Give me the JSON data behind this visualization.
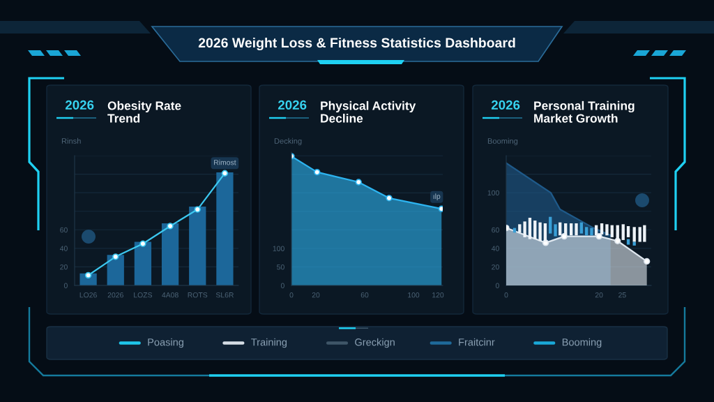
{
  "chart_data": [
    {
      "type": "other",
      "title": "2026 Weight Loss & Fitness Statistics Dashboard"
    },
    {
      "type": "bar",
      "subtitle": "2026",
      "title": "Obesity Rate\nTrend",
      "ylabel": "Rinsh",
      "categories": [
        "LO26",
        "2026",
        "LOZS",
        "4A08",
        "ROTS",
        "SL6R"
      ],
      "series": [
        {
          "type": "bar",
          "color": "#1c679a",
          "values": [
            13,
            33,
            47,
            67,
            85,
            122
          ]
        },
        {
          "type": "line",
          "color": "#3cc8f0",
          "marker": "circle",
          "values": [
            11,
            31,
            45,
            64,
            82,
            121
          ]
        }
      ],
      "ylim": [
        0,
        140
      ],
      "yticks": [
        0,
        20,
        40,
        60,
        {
          "value": 80,
          "label": null
        },
        {
          "value": 100,
          "label": null
        },
        {
          "value": 120,
          "label": null
        },
        {
          "value": 140,
          "label": null
        }
      ],
      "grid": "y",
      "annotations": [
        {
          "text": "Rimost",
          "x": "SL6R",
          "y": 132
        }
      ]
    },
    {
      "type": "area",
      "subtitle": "2026",
      "title": "Physical Activity\nDecline",
      "ylabel": "Decking",
      "x": [
        0,
        21,
        55,
        80,
        123
      ],
      "series": [
        {
          "color": "#2db4f0",
          "marker": "circle",
          "values": [
            349,
            306,
            279,
            236,
            207
          ]
        }
      ],
      "xlim": [
        0,
        124
      ],
      "xticks": [
        0,
        20,
        60,
        100,
        120
      ],
      "ylim": [
        0,
        360
      ],
      "yticks": [
        0,
        50,
        100,
        {
          "value": 150,
          "label": null
        },
        {
          "value": 200,
          "label": null
        },
        {
          "value": 250,
          "label": null
        },
        {
          "value": 300,
          "label": null
        },
        {
          "value": 350,
          "label": null
        }
      ],
      "grid": "y",
      "annotations": [
        {
          "text": "ılp",
          "x": 119,
          "y": 239
        }
      ]
    },
    {
      "type": "area",
      "subtitle": "2026",
      "title": "Personal Training\nMarket Growth",
      "ylabel": "Booming",
      "series": [
        {
          "type": "area",
          "color": "#1f5a8a",
          "x": [
            0,
            9.6,
            11.6,
            18.8,
            22.5
          ],
          "values": [
            132,
            100,
            82,
            62,
            54
          ]
        },
        {
          "type": "area",
          "color": "#dfe7ef",
          "marker": "circle",
          "x": [
            0,
            8.5,
            12.5,
            20,
            24,
            30.3
          ],
          "values": [
            62,
            46,
            53,
            53,
            48,
            26
          ]
        },
        {
          "type": "bar",
          "color": "#eef3f8",
          "x": [
            2.9,
            4.0,
            5.1,
            6.2,
            7.3,
            8.4,
            11.6,
            12.8,
            14.0,
            15.1,
            19.4,
            20.6,
            21.7,
            22.8,
            24.0,
            25.2,
            26.3,
            27.6,
            28.8,
            29.8
          ],
          "base": [
            57,
            52,
            50,
            50,
            48,
            47,
            54,
            54,
            54,
            54,
            54,
            55,
            54,
            52,
            50,
            49,
            52,
            47,
            47,
            47
          ],
          "values": [
            9,
            17,
            23,
            20,
            20,
            20,
            14,
            13,
            13,
            13,
            11,
            12,
            12,
            13,
            15,
            17,
            12,
            16,
            16,
            18
          ]
        },
        {
          "type": "bar",
          "color": "#3a9fd6",
          "x": [
            1.8,
            9.5,
            10.6,
            16.2,
            17.3,
            18.4,
            26.3,
            27.6
          ],
          "base": [
            57,
            56,
            53,
            56,
            54,
            54,
            44,
            43
          ],
          "values": [
            5,
            18,
            13,
            12,
            9,
            8,
            6,
            4
          ]
        }
      ],
      "xlim": [
        0,
        31.25
      ],
      "xticks": [
        0,
        20,
        25
      ],
      "ylim": [
        0,
        140
      ],
      "yticks": [
        0,
        20,
        40,
        60,
        {
          "value": 80,
          "label": null
        },
        100,
        {
          "value": 120,
          "label": null
        },
        {
          "value": 140,
          "label": null
        }
      ],
      "grid": "y"
    },
    {
      "type": "other",
      "annotations": [
        "Poasing",
        "Training",
        "Greckign",
        "Fraitcinr",
        "Booming"
      ],
      "colors": [
        "#1fc6ea",
        "#d5dde5",
        "#3f5668",
        "#1f6a9a",
        "#1aa8d8"
      ]
    }
  ]
}
